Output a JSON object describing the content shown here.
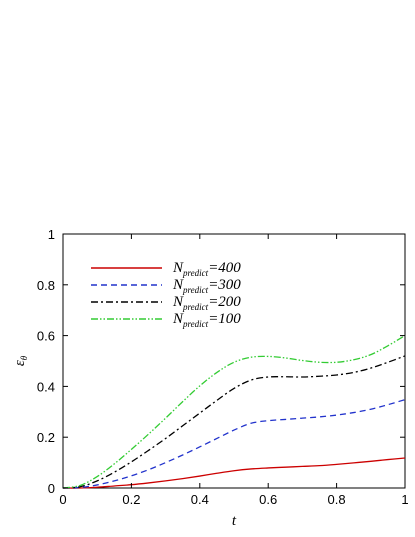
{
  "chart_data": {
    "type": "line",
    "xlabel": "t",
    "ylabel": "ε",
    "ylabel_sub": "θ",
    "xlim": [
      0,
      1
    ],
    "ylim": [
      0,
      1
    ],
    "xticks": [
      "0",
      "0.2",
      "0.4",
      "0.6",
      "0.8",
      "1"
    ],
    "yticks": [
      "0",
      "0.2",
      "0.4",
      "0.6",
      "0.8",
      "1"
    ],
    "grid": false,
    "legend_placement": "top-left",
    "series": [
      {
        "name_base": "N",
        "name_sub": "predict",
        "name_suffix": "=400",
        "color": "#cc0000",
        "dash": "solid",
        "x": [
          0,
          0.05,
          0.1,
          0.15,
          0.2,
          0.25,
          0.3,
          0.35,
          0.4,
          0.45,
          0.5,
          0.55,
          0.6,
          0.65,
          0.7,
          0.75,
          0.8,
          0.85,
          0.9,
          0.95,
          1.0
        ],
        "values": [
          0,
          0.0,
          0.003,
          0.008,
          0.013,
          0.02,
          0.028,
          0.037,
          0.047,
          0.058,
          0.068,
          0.075,
          0.079,
          0.082,
          0.085,
          0.088,
          0.093,
          0.099,
          0.105,
          0.112,
          0.118
        ]
      },
      {
        "name_base": "N",
        "name_sub": "predict",
        "name_suffix": "=300",
        "color": "#2233cc",
        "dash": "dashed",
        "x": [
          0,
          0.05,
          0.1,
          0.15,
          0.2,
          0.25,
          0.3,
          0.35,
          0.4,
          0.45,
          0.5,
          0.55,
          0.6,
          0.65,
          0.7,
          0.75,
          0.8,
          0.85,
          0.9,
          0.95,
          1.0
        ],
        "values": [
          0,
          0.002,
          0.012,
          0.028,
          0.048,
          0.072,
          0.1,
          0.13,
          0.162,
          0.195,
          0.228,
          0.255,
          0.265,
          0.27,
          0.275,
          0.28,
          0.287,
          0.297,
          0.31,
          0.328,
          0.348
        ]
      },
      {
        "name_base": "N",
        "name_sub": "predict",
        "name_suffix": "=200",
        "color": "#000000",
        "dash": "dashdot",
        "x": [
          0,
          0.05,
          0.1,
          0.15,
          0.2,
          0.25,
          0.3,
          0.35,
          0.4,
          0.45,
          0.5,
          0.55,
          0.6,
          0.65,
          0.7,
          0.75,
          0.8,
          0.85,
          0.9,
          0.95,
          1.0
        ],
        "values": [
          0,
          0.005,
          0.028,
          0.062,
          0.103,
          0.148,
          0.195,
          0.245,
          0.295,
          0.345,
          0.392,
          0.425,
          0.437,
          0.438,
          0.437,
          0.44,
          0.445,
          0.455,
          0.472,
          0.495,
          0.52
        ]
      },
      {
        "name_base": "N",
        "name_sub": "predict",
        "name_suffix": "=100",
        "color": "#33cc33",
        "dash": "dashdotdot",
        "x": [
          0,
          0.05,
          0.1,
          0.15,
          0.2,
          0.25,
          0.3,
          0.35,
          0.4,
          0.45,
          0.5,
          0.55,
          0.6,
          0.65,
          0.7,
          0.75,
          0.8,
          0.85,
          0.9,
          0.95,
          1.0
        ],
        "values": [
          0,
          0.01,
          0.045,
          0.095,
          0.152,
          0.212,
          0.275,
          0.34,
          0.402,
          0.455,
          0.495,
          0.515,
          0.518,
          0.512,
          0.502,
          0.495,
          0.495,
          0.505,
          0.525,
          0.56,
          0.6
        ]
      }
    ]
  }
}
